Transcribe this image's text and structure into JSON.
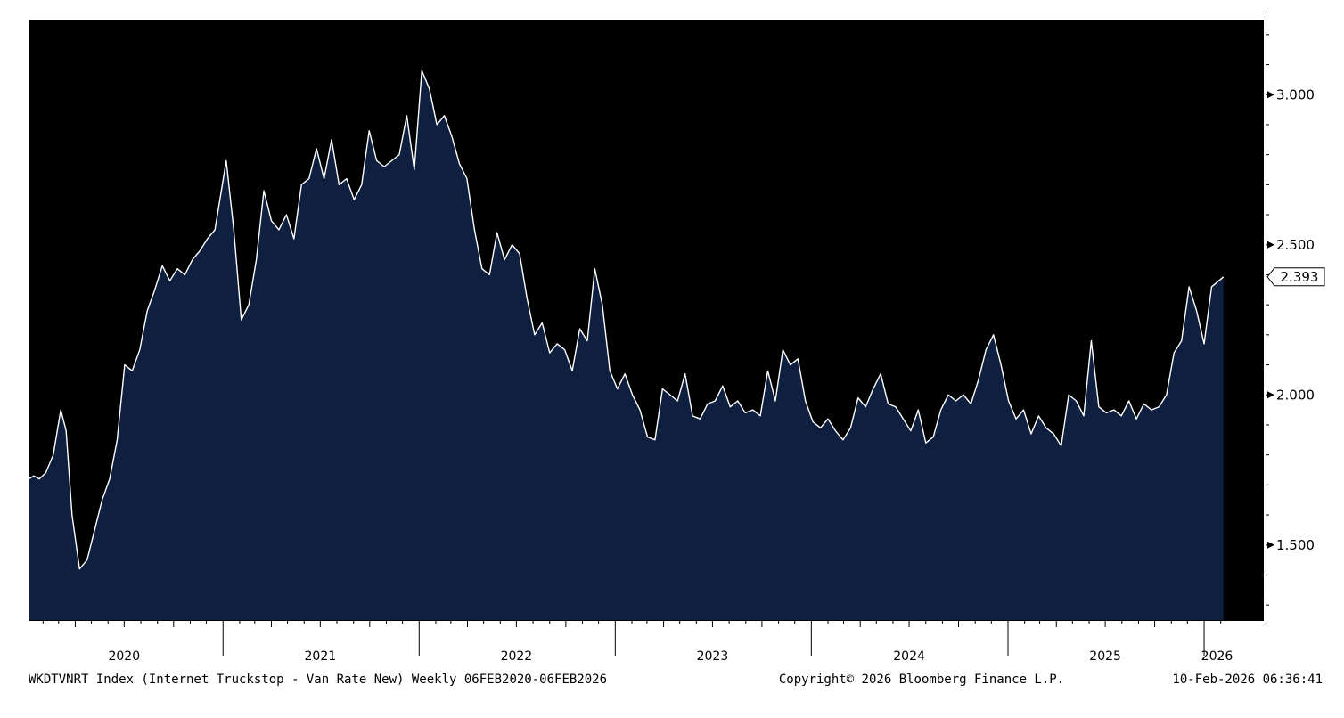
{
  "colors": {
    "plot_background": "#000000",
    "area_fill": "#0e1f3f",
    "line": "#ffffff",
    "page_background": "#ffffff",
    "text": "#000000"
  },
  "chart_data": {
    "type": "area",
    "frequency": "weekly",
    "x_start": "2020-02-06",
    "x_end": "2026-02-06",
    "xlim": [
      "2020-01-05",
      "2026-02-28"
    ],
    "ylim": [
      1.25,
      3.25
    ],
    "yticks": [
      1.5,
      2.0,
      2.5,
      3.0
    ],
    "ytick_labels": [
      "1.500",
      "2.000",
      "2.500",
      "3.000"
    ],
    "year_labels": [
      {
        "label": "2020",
        "x": "2020-07-01"
      },
      {
        "label": "2021",
        "x": "2021-07-01"
      },
      {
        "label": "2022",
        "x": "2022-07-01"
      },
      {
        "label": "2023",
        "x": "2023-07-01"
      },
      {
        "label": "2024",
        "x": "2024-07-01"
      },
      {
        "label": "2025",
        "x": "2025-07-01"
      },
      {
        "label": "2026",
        "x": "2026-01-25"
      }
    ],
    "last_value_label": "2.393",
    "last_value": 2.393,
    "grid": false,
    "series": [
      {
        "points": [
          [
            "2020-01-05",
            1.72
          ],
          [
            "2020-01-15",
            1.73
          ],
          [
            "2020-01-25",
            1.72
          ],
          [
            "2020-02-06",
            1.74
          ],
          [
            "2020-02-20",
            1.8
          ],
          [
            "2020-03-05",
            1.95
          ],
          [
            "2020-03-15",
            1.88
          ],
          [
            "2020-03-26",
            1.6
          ],
          [
            "2020-04-09",
            1.42
          ],
          [
            "2020-04-23",
            1.45
          ],
          [
            "2020-05-07",
            1.55
          ],
          [
            "2020-05-21",
            1.65
          ],
          [
            "2020-06-04",
            1.72
          ],
          [
            "2020-06-18",
            1.85
          ],
          [
            "2020-07-02",
            2.1
          ],
          [
            "2020-07-16",
            2.08
          ],
          [
            "2020-07-30",
            2.15
          ],
          [
            "2020-08-13",
            2.28
          ],
          [
            "2020-08-27",
            2.35
          ],
          [
            "2020-09-10",
            2.43
          ],
          [
            "2020-09-24",
            2.38
          ],
          [
            "2020-10-08",
            2.42
          ],
          [
            "2020-10-22",
            2.4
          ],
          [
            "2020-11-05",
            2.45
          ],
          [
            "2020-11-19",
            2.48
          ],
          [
            "2020-12-03",
            2.52
          ],
          [
            "2020-12-17",
            2.55
          ],
          [
            "2021-01-07",
            2.78
          ],
          [
            "2021-01-21",
            2.55
          ],
          [
            "2021-02-04",
            2.25
          ],
          [
            "2021-02-18",
            2.3
          ],
          [
            "2021-03-04",
            2.45
          ],
          [
            "2021-03-18",
            2.68
          ],
          [
            "2021-04-01",
            2.58
          ],
          [
            "2021-04-15",
            2.55
          ],
          [
            "2021-04-29",
            2.6
          ],
          [
            "2021-05-13",
            2.52
          ],
          [
            "2021-05-27",
            2.7
          ],
          [
            "2021-06-10",
            2.72
          ],
          [
            "2021-06-24",
            2.82
          ],
          [
            "2021-07-08",
            2.72
          ],
          [
            "2021-07-22",
            2.85
          ],
          [
            "2021-08-05",
            2.7
          ],
          [
            "2021-08-19",
            2.72
          ],
          [
            "2021-09-02",
            2.65
          ],
          [
            "2021-09-16",
            2.7
          ],
          [
            "2021-09-30",
            2.88
          ],
          [
            "2021-10-14",
            2.78
          ],
          [
            "2021-10-28",
            2.76
          ],
          [
            "2021-11-11",
            2.78
          ],
          [
            "2021-11-25",
            2.8
          ],
          [
            "2021-12-09",
            2.93
          ],
          [
            "2021-12-23",
            2.75
          ],
          [
            "2022-01-06",
            3.08
          ],
          [
            "2022-01-20",
            3.02
          ],
          [
            "2022-02-03",
            2.9
          ],
          [
            "2022-02-17",
            2.93
          ],
          [
            "2022-03-03",
            2.86
          ],
          [
            "2022-03-17",
            2.77
          ],
          [
            "2022-03-31",
            2.72
          ],
          [
            "2022-04-14",
            2.55
          ],
          [
            "2022-04-28",
            2.42
          ],
          [
            "2022-05-12",
            2.4
          ],
          [
            "2022-05-26",
            2.54
          ],
          [
            "2022-06-09",
            2.45
          ],
          [
            "2022-06-23",
            2.5
          ],
          [
            "2022-07-07",
            2.47
          ],
          [
            "2022-07-21",
            2.32
          ],
          [
            "2022-08-04",
            2.2
          ],
          [
            "2022-08-18",
            2.24
          ],
          [
            "2022-09-01",
            2.14
          ],
          [
            "2022-09-15",
            2.17
          ],
          [
            "2022-09-29",
            2.15
          ],
          [
            "2022-10-13",
            2.08
          ],
          [
            "2022-10-27",
            2.22
          ],
          [
            "2022-11-10",
            2.18
          ],
          [
            "2022-11-24",
            2.42
          ],
          [
            "2022-12-08",
            2.3
          ],
          [
            "2022-12-22",
            2.08
          ],
          [
            "2023-01-05",
            2.02
          ],
          [
            "2023-01-19",
            2.07
          ],
          [
            "2023-02-02",
            2.0
          ],
          [
            "2023-02-16",
            1.95
          ],
          [
            "2023-03-02",
            1.86
          ],
          [
            "2023-03-16",
            1.85
          ],
          [
            "2023-03-30",
            2.02
          ],
          [
            "2023-04-13",
            2.0
          ],
          [
            "2023-04-27",
            1.98
          ],
          [
            "2023-05-11",
            2.07
          ],
          [
            "2023-05-25",
            1.93
          ],
          [
            "2023-06-08",
            1.92
          ],
          [
            "2023-06-22",
            1.97
          ],
          [
            "2023-07-06",
            1.98
          ],
          [
            "2023-07-20",
            2.03
          ],
          [
            "2023-08-03",
            1.96
          ],
          [
            "2023-08-17",
            1.98
          ],
          [
            "2023-08-31",
            1.94
          ],
          [
            "2023-09-14",
            1.95
          ],
          [
            "2023-09-28",
            1.93
          ],
          [
            "2023-10-12",
            2.08
          ],
          [
            "2023-10-26",
            1.98
          ],
          [
            "2023-11-09",
            2.15
          ],
          [
            "2023-11-23",
            2.1
          ],
          [
            "2023-12-07",
            2.12
          ],
          [
            "2023-12-21",
            1.98
          ],
          [
            "2024-01-04",
            1.91
          ],
          [
            "2024-01-18",
            1.89
          ],
          [
            "2024-02-01",
            1.92
          ],
          [
            "2024-02-15",
            1.88
          ],
          [
            "2024-02-29",
            1.85
          ],
          [
            "2024-03-14",
            1.89
          ],
          [
            "2024-03-28",
            1.99
          ],
          [
            "2024-04-11",
            1.96
          ],
          [
            "2024-04-25",
            2.02
          ],
          [
            "2024-05-09",
            2.07
          ],
          [
            "2024-05-23",
            1.97
          ],
          [
            "2024-06-06",
            1.96
          ],
          [
            "2024-06-20",
            1.92
          ],
          [
            "2024-07-04",
            1.88
          ],
          [
            "2024-07-18",
            1.95
          ],
          [
            "2024-08-01",
            1.84
          ],
          [
            "2024-08-15",
            1.86
          ],
          [
            "2024-08-29",
            1.95
          ],
          [
            "2024-09-12",
            2.0
          ],
          [
            "2024-09-26",
            1.98
          ],
          [
            "2024-10-10",
            2.0
          ],
          [
            "2024-10-24",
            1.97
          ],
          [
            "2024-11-07",
            2.05
          ],
          [
            "2024-11-21",
            2.15
          ],
          [
            "2024-12-05",
            2.2
          ],
          [
            "2024-12-19",
            2.1
          ],
          [
            "2025-01-02",
            1.98
          ],
          [
            "2025-01-16",
            1.92
          ],
          [
            "2025-01-30",
            1.95
          ],
          [
            "2025-02-13",
            1.87
          ],
          [
            "2025-02-27",
            1.93
          ],
          [
            "2025-03-13",
            1.89
          ],
          [
            "2025-03-27",
            1.87
          ],
          [
            "2025-04-10",
            1.83
          ],
          [
            "2025-04-24",
            2.0
          ],
          [
            "2025-05-08",
            1.98
          ],
          [
            "2025-05-22",
            1.93
          ],
          [
            "2025-06-05",
            2.18
          ],
          [
            "2025-06-19",
            1.96
          ],
          [
            "2025-07-03",
            1.94
          ],
          [
            "2025-07-17",
            1.95
          ],
          [
            "2025-07-31",
            1.93
          ],
          [
            "2025-08-14",
            1.98
          ],
          [
            "2025-08-28",
            1.92
          ],
          [
            "2025-09-11",
            1.97
          ],
          [
            "2025-09-25",
            1.95
          ],
          [
            "2025-10-09",
            1.96
          ],
          [
            "2025-10-23",
            2.0
          ],
          [
            "2025-11-06",
            2.14
          ],
          [
            "2025-11-20",
            2.18
          ],
          [
            "2025-12-04",
            2.36
          ],
          [
            "2025-12-18",
            2.28
          ],
          [
            "2026-01-01",
            2.17
          ],
          [
            "2026-01-15",
            2.36
          ],
          [
            "2026-02-06",
            2.393
          ]
        ]
      }
    ]
  },
  "footer": {
    "index_text": "WKDTVNRT Index (Internet Truckstop - Van Rate New) Weekly 06FEB2020-06FEB2026",
    "copyright_text": "Copyright© 2026 Bloomberg Finance L.P.",
    "timestamp_text": "10-Feb-2026 06:36:41"
  }
}
